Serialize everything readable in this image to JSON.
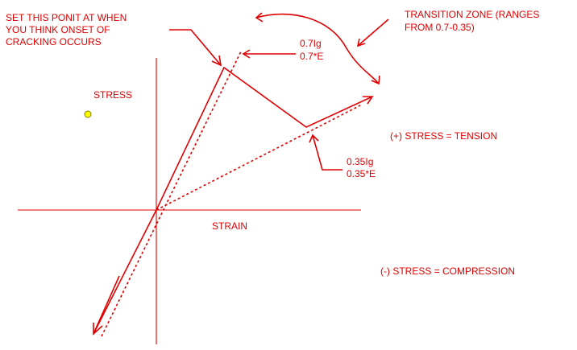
{
  "labels": {
    "set_point_line1": "SET THIS PONIT AT WHEN",
    "set_point_line2": "YOU THINK ONSET OF",
    "set_point_line3": "CRACKING OCCURS",
    "upper_ig": "0.7Ig",
    "upper_e": "0.7*E",
    "transition_line1": "TRANSITION ZONE  (RANGES",
    "transition_line2": "FROM 0.7-0.35)",
    "stress_axis": "STRESS",
    "strain_axis": "STRAIN",
    "tension": "(+) STRESS = TENSION",
    "lower_ig": "0.35Ig",
    "lower_e": "0.35*E",
    "compression": "(-) STRESS = COMPRESSION"
  },
  "colors": {
    "ink": "#e00000",
    "axis": "#e00000",
    "marker_fill": "#ffff00",
    "marker_stroke": "#808000"
  }
}
